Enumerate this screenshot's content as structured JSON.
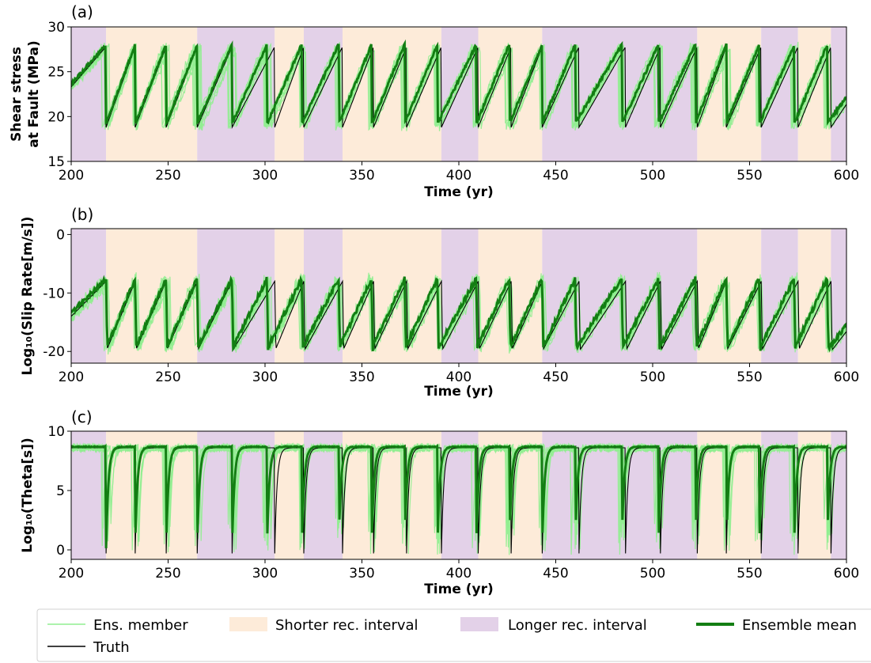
{
  "figure": {
    "xlabel": "Time (yr)",
    "xticks": [
      200,
      250,
      300,
      350,
      400,
      450,
      500,
      550,
      600
    ],
    "xlim": [
      200,
      600
    ]
  },
  "legend": {
    "placement": "bottom",
    "entries": [
      {
        "label": "Ens. member",
        "kind": "line",
        "color": "#90ee90"
      },
      {
        "label": "Shorter rec. interval",
        "kind": "patch",
        "color": "#fdebd9"
      },
      {
        "label": "Longer rec. interval",
        "kind": "patch",
        "color": "#e3d1e8"
      },
      {
        "label": "Ensemble mean",
        "kind": "line",
        "color": "#137e13"
      },
      {
        "label": "Truth",
        "kind": "line",
        "color": "#000000"
      }
    ]
  },
  "colors": {
    "ensemble_member": "#90ee90",
    "ensemble_mean": "#137e13",
    "truth": "#000000",
    "shorter_interval": "#fdebd9",
    "longer_interval": "#e3d1e8"
  },
  "chart_data": [
    {
      "type": "line",
      "panel": "(a)",
      "ylabel_line1": "Shear stress",
      "ylabel_line2": "at Fault (MPa)",
      "xlabel": "Time (yr)",
      "xlim": [
        200,
        600
      ],
      "ylim": [
        15,
        30
      ],
      "yticks": [
        15,
        20,
        25,
        30
      ],
      "truth": {
        "low": 18.8,
        "high": 27.8
      },
      "series": [
        {
          "name": "Ens. member"
        },
        {
          "name": "Ensemble mean"
        },
        {
          "name": "Truth"
        }
      ]
    },
    {
      "type": "line",
      "panel": "(b)",
      "ylabel": "Log₁₀(Slip Rate[m/s])",
      "xlabel": "Time (yr)",
      "xlim": [
        200,
        600
      ],
      "ylim": [
        -22,
        1
      ],
      "yticks": [
        -20,
        -10,
        0
      ],
      "truth": {
        "low": -20,
        "high": -8
      },
      "series": [
        {
          "name": "Ens. member"
        },
        {
          "name": "Ensemble mean"
        },
        {
          "name": "Truth"
        }
      ]
    },
    {
      "type": "line",
      "panel": "(c)",
      "ylabel": "Log₁₀(Theta[s])",
      "xlabel": "Time (yr)",
      "xlim": [
        200,
        600
      ],
      "ylim": [
        -0.8,
        10
      ],
      "yticks": [
        0,
        5,
        10
      ],
      "truth": {
        "low": -0.3,
        "high": 8.6
      },
      "series": [
        {
          "name": "Ens. member"
        },
        {
          "name": "Ensemble mean"
        },
        {
          "name": "Truth"
        }
      ]
    }
  ],
  "events": {
    "truth_ruptures": [
      218,
      233,
      249,
      265,
      283,
      305,
      320,
      340,
      356,
      373,
      391,
      410,
      427,
      443,
      462,
      486,
      504,
      523,
      538,
      556,
      575,
      592
    ],
    "mean_ruptures": [
      218,
      233,
      249,
      265,
      283,
      301,
      319,
      338,
      355,
      372,
      389,
      409,
      426,
      443,
      460,
      484,
      503,
      522,
      538,
      555,
      573,
      590
    ],
    "intervals": [
      {
        "start": 200,
        "end": 218,
        "kind": "longer"
      },
      {
        "start": 218,
        "end": 265,
        "kind": "shorter"
      },
      {
        "start": 265,
        "end": 305,
        "kind": "longer"
      },
      {
        "start": 305,
        "end": 320,
        "kind": "shorter"
      },
      {
        "start": 320,
        "end": 340,
        "kind": "longer"
      },
      {
        "start": 340,
        "end": 391,
        "kind": "shorter"
      },
      {
        "start": 391,
        "end": 410,
        "kind": "longer"
      },
      {
        "start": 410,
        "end": 443,
        "kind": "shorter"
      },
      {
        "start": 443,
        "end": 523,
        "kind": "longer"
      },
      {
        "start": 523,
        "end": 556,
        "kind": "shorter"
      },
      {
        "start": 556,
        "end": 575,
        "kind": "longer"
      },
      {
        "start": 575,
        "end": 592,
        "kind": "shorter"
      },
      {
        "start": 592,
        "end": 600,
        "kind": "longer"
      }
    ]
  }
}
